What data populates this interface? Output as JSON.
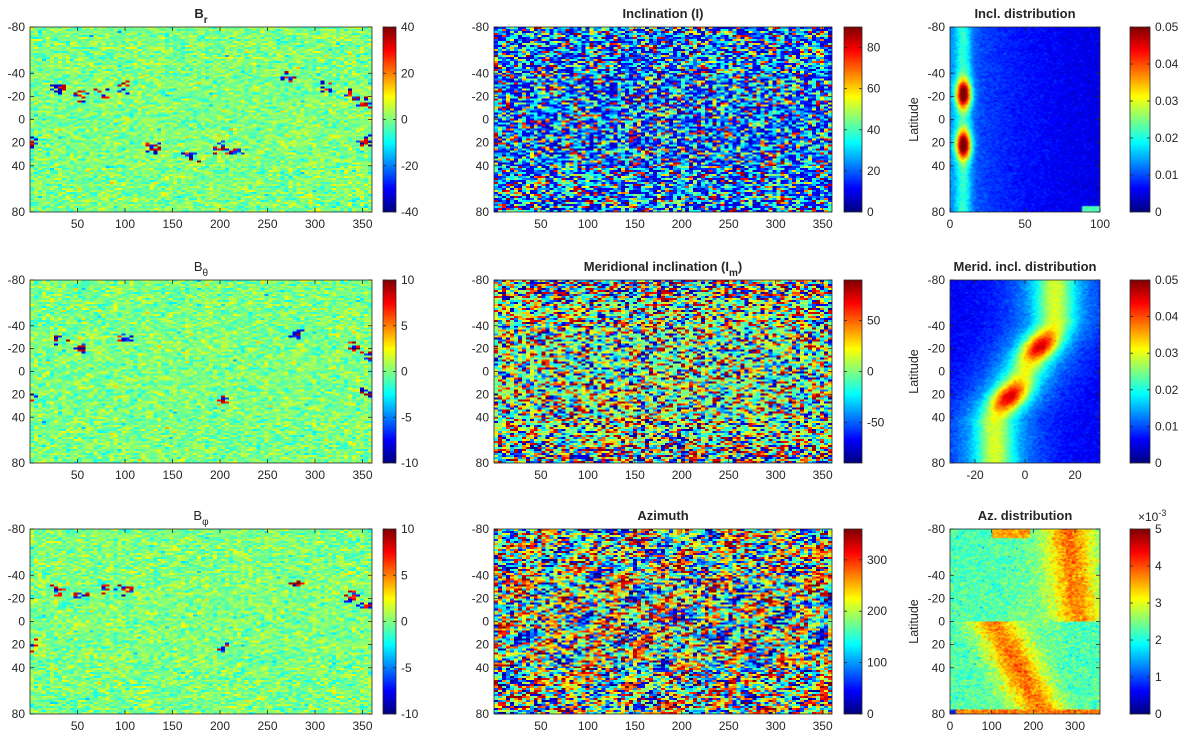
{
  "chart_data": [
    {
      "id": "br",
      "type": "heatmap",
      "title": "B",
      "title_sub": "r",
      "title_bold": true,
      "xlim": [
        0,
        360
      ],
      "ylim": [
        -80,
        80
      ],
      "xticks": [
        50,
        100,
        150,
        200,
        250,
        300,
        350
      ],
      "yticks": [
        -80,
        -40,
        -20,
        0,
        20,
        40,
        80
      ],
      "ylabel": "",
      "colorbar": {
        "min": -40,
        "max": 40,
        "ticks": [
          40,
          20,
          0,
          -20,
          -40
        ]
      },
      "pattern": "field",
      "active_regions": [
        {
          "lon": 30,
          "lat": -27,
          "s": 1
        },
        {
          "lon": 55,
          "lat": -20,
          "s": 1
        },
        {
          "lon": 75,
          "lat": -22,
          "s": 1
        },
        {
          "lon": 100,
          "lat": -28,
          "s": 1
        },
        {
          "lon": 275,
          "lat": -37,
          "s": 1.2
        },
        {
          "lon": 310,
          "lat": -28,
          "s": 1.2
        },
        {
          "lon": 340,
          "lat": -22,
          "s": 1.2
        },
        {
          "lon": 355,
          "lat": -13,
          "s": 1
        },
        {
          "lon": 200,
          "lat": 24,
          "s": 1.2
        },
        {
          "lon": 215,
          "lat": 27,
          "s": 1
        },
        {
          "lon": 2,
          "lat": 20,
          "s": 0.7
        },
        {
          "lon": 355,
          "lat": 19,
          "s": 0.7
        },
        {
          "lon": 130,
          "lat": 24,
          "s": 0.6
        },
        {
          "lon": 170,
          "lat": 32,
          "s": 0.5
        }
      ]
    },
    {
      "id": "incl",
      "type": "heatmap",
      "title": "Inclination (I)",
      "title_bold": true,
      "xlim": [
        0,
        360
      ],
      "ylim": [
        -80,
        80
      ],
      "xticks": [
        50,
        100,
        150,
        200,
        250,
        300,
        350
      ],
      "yticks": [
        -80,
        -40,
        -20,
        0,
        20,
        40,
        80
      ],
      "ylabel": "",
      "colorbar": {
        "min": 0,
        "max": 90,
        "ticks": [
          80,
          60,
          40,
          20,
          0
        ]
      },
      "pattern": "inclination"
    },
    {
      "id": "incl_dist",
      "type": "heatmap",
      "title": "Incl. distribution",
      "title_bold": true,
      "xlim": [
        0,
        100
      ],
      "ylim": [
        -80,
        80
      ],
      "xticks": [
        0,
        50,
        100
      ],
      "yticks": [
        -80,
        -40,
        -20,
        0,
        20,
        40,
        80
      ],
      "ylabel": "Latitude",
      "colorbar": {
        "min": 0,
        "max": 0.05,
        "ticks": [
          0.05,
          0.04,
          0.03,
          0.02,
          0.01,
          0
        ]
      },
      "pattern": "incl_dist"
    },
    {
      "id": "btheta",
      "type": "heatmap",
      "title": "B",
      "title_sub": "θ",
      "title_bold": false,
      "xlim": [
        0,
        360
      ],
      "ylim": [
        -80,
        80
      ],
      "xticks": [
        50,
        100,
        150,
        200,
        250,
        300,
        350
      ],
      "yticks": [
        -80,
        -40,
        -20,
        0,
        20,
        40,
        80
      ],
      "ylabel": "",
      "colorbar": {
        "min": -10,
        "max": 10,
        "ticks": [
          10,
          5,
          0,
          -5,
          -10
        ]
      },
      "pattern": "field",
      "active_regions": [
        {
          "lon": 30,
          "lat": -27,
          "s": 0.8
        },
        {
          "lon": 55,
          "lat": -20,
          "s": 0.8
        },
        {
          "lon": 100,
          "lat": -28,
          "s": 0.7
        },
        {
          "lon": 280,
          "lat": -33,
          "s": 1
        },
        {
          "lon": 340,
          "lat": -22,
          "s": 1
        },
        {
          "lon": 355,
          "lat": -13,
          "s": 0.8
        },
        {
          "lon": 205,
          "lat": 24,
          "s": 1
        },
        {
          "lon": 2,
          "lat": 20,
          "s": 0.6
        },
        {
          "lon": 355,
          "lat": 19,
          "s": 0.6
        }
      ]
    },
    {
      "id": "imer",
      "type": "heatmap",
      "title": "Meridional inclination (I",
      "title_sub": "m",
      "title_tail": ")",
      "title_bold": true,
      "xlim": [
        0,
        360
      ],
      "ylim": [
        -80,
        80
      ],
      "xticks": [
        50,
        100,
        150,
        200,
        250,
        300,
        350
      ],
      "yticks": [
        -80,
        -40,
        -20,
        0,
        20,
        40,
        80
      ],
      "ylabel": "",
      "colorbar": {
        "min": -90,
        "max": 90,
        "ticks": [
          50,
          0,
          -50
        ]
      },
      "pattern": "meridional"
    },
    {
      "id": "imer_dist",
      "type": "heatmap",
      "title": "Merid. incl. distribution",
      "title_bold": true,
      "xlim": [
        -30,
        30
      ],
      "ylim": [
        -80,
        80
      ],
      "xticks": [
        -20,
        0,
        20
      ],
      "yticks": [
        -80,
        -40,
        -20,
        0,
        20,
        40,
        80
      ],
      "ylabel": "Latitude",
      "colorbar": {
        "min": 0,
        "max": 0.05,
        "ticks": [
          0.05,
          0.04,
          0.03,
          0.02,
          0.01,
          0
        ]
      },
      "pattern": "merid_dist"
    },
    {
      "id": "bphi",
      "type": "heatmap",
      "title": "B",
      "title_sub": "φ",
      "title_bold": false,
      "xlim": [
        0,
        360
      ],
      "ylim": [
        -80,
        80
      ],
      "xticks": [
        50,
        100,
        150,
        200,
        250,
        300,
        350
      ],
      "yticks": [
        -80,
        -40,
        -20,
        0,
        20,
        40,
        80
      ],
      "ylabel": "",
      "colorbar": {
        "min": -10,
        "max": 10,
        "ticks": [
          10,
          5,
          0,
          -5,
          -10
        ]
      },
      "pattern": "field",
      "active_regions": [
        {
          "lon": 30,
          "lat": -27,
          "s": 0.7
        },
        {
          "lon": 55,
          "lat": -20,
          "s": 0.8
        },
        {
          "lon": 80,
          "lat": -27,
          "s": 0.6
        },
        {
          "lon": 100,
          "lat": -28,
          "s": 0.6
        },
        {
          "lon": 280,
          "lat": -33,
          "s": 1
        },
        {
          "lon": 340,
          "lat": -22,
          "s": 1
        },
        {
          "lon": 355,
          "lat": -13,
          "s": 0.7
        },
        {
          "lon": 205,
          "lat": 24,
          "s": 1
        },
        {
          "lon": 2,
          "lat": 20,
          "s": 0.5
        }
      ]
    },
    {
      "id": "az",
      "type": "heatmap",
      "title": "Azimuth",
      "title_bold": true,
      "xlim": [
        0,
        360
      ],
      "ylim": [
        -80,
        80
      ],
      "xticks": [
        50,
        100,
        150,
        200,
        250,
        300,
        350
      ],
      "yticks": [
        -80,
        -40,
        -20,
        0,
        20,
        40,
        80
      ],
      "ylabel": "",
      "colorbar": {
        "min": 0,
        "max": 360,
        "ticks": [
          300,
          200,
          100,
          0
        ]
      },
      "pattern": "azimuth"
    },
    {
      "id": "az_dist",
      "type": "heatmap",
      "title": "Az. distribution",
      "title_bold": true,
      "xlim": [
        0,
        360
      ],
      "ylim": [
        -80,
        80
      ],
      "xticks": [
        0,
        100,
        200,
        300
      ],
      "yticks": [
        -80,
        -40,
        -20,
        0,
        20,
        40,
        80
      ],
      "ylabel": "Latitude",
      "colorbar": {
        "min": 0,
        "max": 5,
        "ticks": [
          5,
          4,
          3,
          2,
          1,
          0
        ],
        "exponent": "×10",
        "exponent_power": "-3"
      },
      "pattern": "az_dist"
    }
  ]
}
